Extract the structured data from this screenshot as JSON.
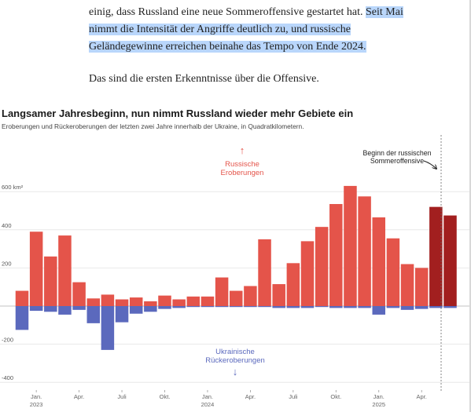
{
  "article": {
    "line1_plain": "einig, dass Russland eine neue Sommeroffensive gestartet hat.",
    "line1_highlight": "Seit Mai",
    "line2": "nimmt die Intensität der Angriffe deutlich zu, und russische",
    "line3": "Geländegewinne erreichen beinahe das Tempo von Ende 2024.",
    "paragraph2": "Das sind die ersten Erkenntnisse über die Offensive."
  },
  "chart_data": {
    "type": "bar",
    "title": "Langsamer Jahresbeginn, nun nimmt Russland wieder mehr Gebiete ein",
    "subtitle": "Eroberungen und Rückeroberungen der letzten zwei Jahre innerhalb der Ukraine, in Quadratkilometern.",
    "ylim": [
      -400,
      600
    ],
    "y_ticks": [
      {
        "value": 600,
        "label": "600 km²"
      },
      {
        "value": 400,
        "label": "400"
      },
      {
        "value": 200,
        "label": "200"
      },
      {
        "value": -200,
        "label": "-200"
      },
      {
        "value": -400,
        "label": "-400"
      }
    ],
    "x_ticks": [
      {
        "index": 1,
        "label": "Jan.",
        "sublabel": "2023"
      },
      {
        "index": 4,
        "label": "Apr."
      },
      {
        "index": 7,
        "label": "Juli"
      },
      {
        "index": 10,
        "label": "Okt."
      },
      {
        "index": 13,
        "label": "Jan.",
        "sublabel": "2024"
      },
      {
        "index": 16,
        "label": "Apr."
      },
      {
        "index": 19,
        "label": "Juli"
      },
      {
        "index": 22,
        "label": "Okt."
      },
      {
        "index": 25,
        "label": "Jan.",
        "sublabel": "2025"
      },
      {
        "index": 28,
        "label": "Apr."
      }
    ],
    "series": [
      {
        "name": "Russische Eroberungen",
        "color": "#e4544a",
        "highlight_color": "#a21f1f",
        "highlight_from_index": 29,
        "values": [
          80,
          390,
          260,
          370,
          125,
          40,
          60,
          35,
          45,
          25,
          55,
          35,
          50,
          50,
          150,
          80,
          105,
          350,
          115,
          225,
          340,
          415,
          535,
          630,
          575,
          465,
          355,
          220,
          200,
          520,
          475
        ]
      },
      {
        "name": "Ukrainische Rückeroberungen",
        "color": "#5b69bd",
        "values": [
          -125,
          -25,
          -30,
          -45,
          -20,
          -90,
          -230,
          -85,
          -40,
          -30,
          -15,
          -10,
          -5,
          -5,
          -5,
          -5,
          -5,
          -5,
          -10,
          -10,
          -10,
          -5,
          -10,
          -10,
          -10,
          -45,
          -10,
          -20,
          -15,
          -10,
          -10
        ]
      }
    ],
    "annotations": {
      "russian": {
        "arrow": "↑",
        "line1": "Russische",
        "line2": "Eroberungen"
      },
      "ukrainian": {
        "line1": "Ukrainische",
        "line2": "Rückeroberungen",
        "arrow": "↓"
      },
      "offensive": {
        "line1": "Beginn der russischen",
        "line2": "Sommeroffensive"
      }
    }
  }
}
